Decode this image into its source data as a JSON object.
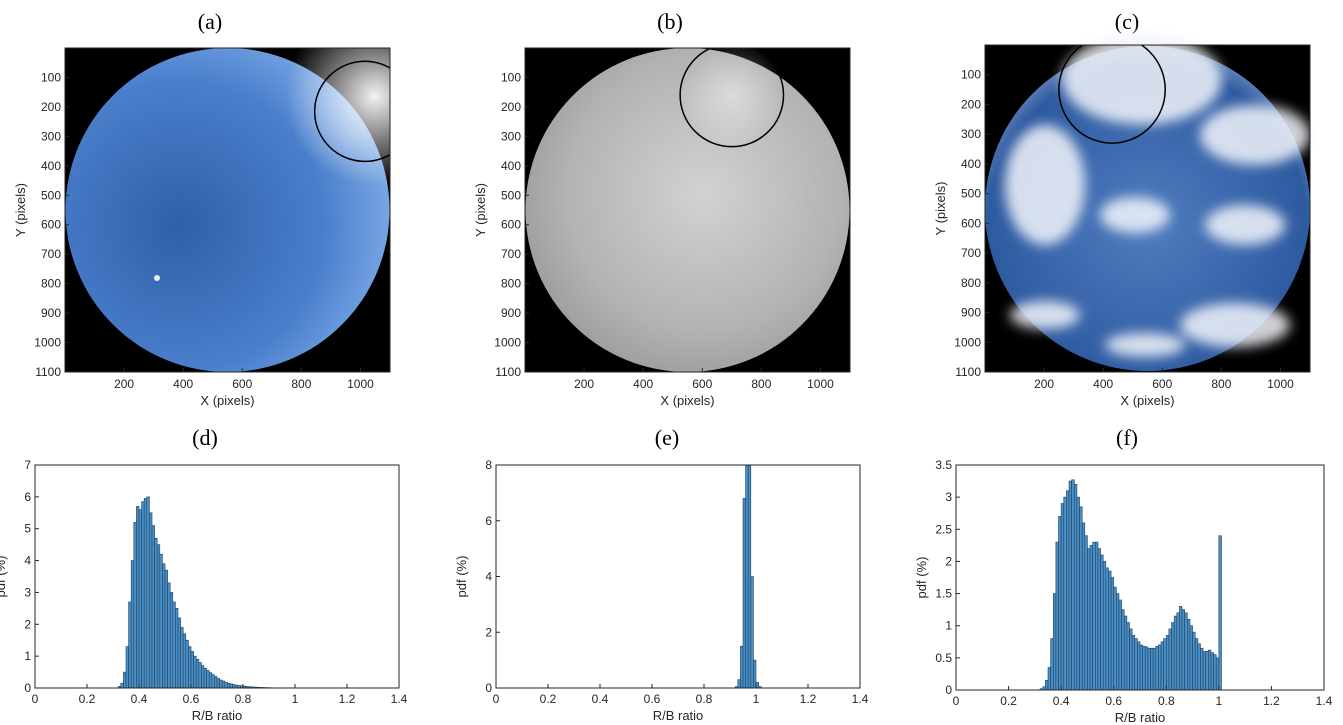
{
  "figure": {
    "image_panels": [
      {
        "title": "(a)",
        "xlabel": "X (pixels)",
        "ylabel": "Y (pixels)",
        "xticks": [
          "200",
          "400",
          "600",
          "800",
          "1000"
        ],
        "yticks": [
          "100",
          "200",
          "300",
          "400",
          "500",
          "600",
          "700",
          "800",
          "900",
          "1000",
          "1100"
        ],
        "sky": "clear",
        "sky_colors": [
          "#2f5fa8",
          "#4a7fcc",
          "#8db8ef"
        ],
        "sun_circle_center": [
          1015,
          215
        ],
        "sun_circle_radius": 170
      },
      {
        "title": "(b)",
        "xlabel": "X (pixels)",
        "ylabel": "Y (pixels)",
        "xticks": [
          "200",
          "400",
          "600",
          "800",
          "1000"
        ],
        "yticks": [
          "100",
          "200",
          "300",
          "400",
          "500",
          "600",
          "700",
          "800",
          "900",
          "1000",
          "1100"
        ],
        "sky": "overcast",
        "sky_colors": [
          "#8e8e8e",
          "#b3b3b3",
          "#d2d2d2"
        ],
        "sun_circle_center": [
          700,
          160
        ],
        "sun_circle_radius": 175
      },
      {
        "title": "(c)",
        "xlabel": "X (pixels)",
        "ylabel": "Y (pixels)",
        "xticks": [
          "200",
          "400",
          "600",
          "800",
          "1000"
        ],
        "yticks": [
          "100",
          "200",
          "300",
          "400",
          "500",
          "600",
          "700",
          "800",
          "900",
          "1000",
          "1100"
        ],
        "sky": "partly-cloudy",
        "sky_colors": [
          "#2e5aa0",
          "#4f7dbf",
          "#dfe6f0"
        ],
        "sun_circle_center": [
          430,
          150
        ],
        "sun_circle_radius": 180
      }
    ]
  },
  "chart_data": [
    {
      "type": "bar",
      "title": "(d)",
      "xlabel": "R/B ratio",
      "ylabel": "pdf (%)",
      "xlim": [
        0,
        1.4
      ],
      "ylim": [
        0,
        7
      ],
      "bin_width": 0.01,
      "xticks": [
        "0",
        "0.2",
        "0.4",
        "0.6",
        "0.8",
        "1",
        "1.2",
        "1.4"
      ],
      "yticks": [
        "0",
        "1",
        "2",
        "3",
        "4",
        "5",
        "6",
        "7"
      ],
      "bin_starts": [
        0.32,
        0.33,
        0.34,
        0.35,
        0.36,
        0.37,
        0.38,
        0.39,
        0.4,
        0.41,
        0.42,
        0.43,
        0.44,
        0.45,
        0.46,
        0.47,
        0.48,
        0.49,
        0.5,
        0.51,
        0.52,
        0.53,
        0.54,
        0.55,
        0.56,
        0.57,
        0.58,
        0.59,
        0.6,
        0.61,
        0.62,
        0.63,
        0.64,
        0.65,
        0.66,
        0.67,
        0.68,
        0.69,
        0.7,
        0.71,
        0.72,
        0.73,
        0.74,
        0.75,
        0.76,
        0.77,
        0.78,
        0.79,
        0.8,
        0.81,
        0.82,
        0.83,
        0.84,
        0.85,
        0.86,
        0.87,
        0.88,
        0.89,
        0.9,
        0.91,
        0.92,
        0.93,
        0.94,
        0.95,
        0.96,
        0.97
      ],
      "values": [
        0.05,
        0.15,
        0.5,
        1.3,
        2.7,
        4.0,
        5.2,
        5.7,
        5.6,
        5.85,
        5.95,
        6.0,
        5.5,
        5.1,
        4.7,
        4.5,
        4.2,
        3.9,
        3.7,
        3.3,
        3.0,
        2.7,
        2.5,
        2.2,
        1.9,
        1.7,
        1.5,
        1.3,
        1.15,
        1.0,
        0.9,
        0.8,
        0.7,
        0.62,
        0.55,
        0.48,
        0.42,
        0.36,
        0.3,
        0.25,
        0.22,
        0.18,
        0.15,
        0.13,
        0.11,
        0.09,
        0.08,
        0.07,
        0.06,
        0.05,
        0.04,
        0.035,
        0.03,
        0.025,
        0.02,
        0.018,
        0.015,
        0.012,
        0.01,
        0.008,
        0.006,
        0.005,
        0.004,
        0.003,
        0.002,
        0.001
      ]
    },
    {
      "type": "bar",
      "title": "(e)",
      "xlabel": "R/B ratio",
      "ylabel": "pdf (%)",
      "xlim": [
        0,
        1.4
      ],
      "ylim": [
        0,
        8
      ],
      "bin_width": 0.01,
      "xticks": [
        "0",
        "0.2",
        "0.4",
        "0.6",
        "0.8",
        "1",
        "1.2",
        "1.4"
      ],
      "yticks": [
        "0",
        "2",
        "4",
        "6",
        "8"
      ],
      "bin_starts": [
        0.92,
        0.93,
        0.94,
        0.95,
        0.96,
        0.97,
        0.98,
        0.99,
        1.0,
        1.01
      ],
      "values": [
        0.05,
        0.3,
        1.5,
        6.8,
        8.0,
        8.0,
        4.0,
        1.0,
        0.2,
        0.05
      ]
    },
    {
      "type": "bar",
      "title": "(f)",
      "xlabel": "R/B ratio",
      "ylabel": "pdf (%)",
      "xlim": [
        0,
        1.4
      ],
      "ylim": [
        0,
        3.5
      ],
      "bin_width": 0.01,
      "xticks": [
        "0",
        "0.2",
        "0.4",
        "0.6",
        "0.8",
        "1",
        "1.2",
        "1.4"
      ],
      "yticks": [
        "0",
        "0.5",
        "1",
        "1.5",
        "2",
        "2.5",
        "3",
        "3.5"
      ],
      "bin_starts": [
        0.32,
        0.33,
        0.34,
        0.35,
        0.36,
        0.37,
        0.38,
        0.39,
        0.4,
        0.41,
        0.42,
        0.43,
        0.44,
        0.45,
        0.46,
        0.47,
        0.48,
        0.49,
        0.5,
        0.51,
        0.52,
        0.53,
        0.54,
        0.55,
        0.56,
        0.57,
        0.58,
        0.59,
        0.6,
        0.61,
        0.62,
        0.63,
        0.64,
        0.65,
        0.66,
        0.67,
        0.68,
        0.69,
        0.7,
        0.71,
        0.72,
        0.73,
        0.74,
        0.75,
        0.76,
        0.77,
        0.78,
        0.79,
        0.8,
        0.81,
        0.82,
        0.83,
        0.84,
        0.85,
        0.86,
        0.87,
        0.88,
        0.89,
        0.9,
        0.91,
        0.92,
        0.93,
        0.94,
        0.95,
        0.96,
        0.97,
        0.98,
        0.99,
        1.0
      ],
      "values": [
        0.02,
        0.05,
        0.15,
        0.35,
        0.8,
        1.5,
        2.3,
        2.7,
        2.9,
        3.0,
        3.1,
        3.25,
        3.27,
        3.2,
        3.0,
        2.85,
        2.6,
        2.4,
        2.2,
        2.25,
        2.3,
        2.3,
        2.2,
        2.1,
        2.0,
        1.9,
        1.85,
        1.75,
        1.6,
        1.5,
        1.4,
        1.25,
        1.15,
        1.05,
        0.95,
        0.85,
        0.8,
        0.75,
        0.7,
        0.68,
        0.67,
        0.65,
        0.65,
        0.65,
        0.68,
        0.7,
        0.75,
        0.8,
        0.85,
        0.95,
        1.05,
        1.15,
        1.2,
        1.3,
        1.25,
        1.2,
        1.1,
        1.0,
        0.9,
        0.8,
        0.72,
        0.65,
        0.6,
        0.6,
        0.62,
        0.58,
        0.55,
        0.5,
        2.4
      ]
    }
  ]
}
